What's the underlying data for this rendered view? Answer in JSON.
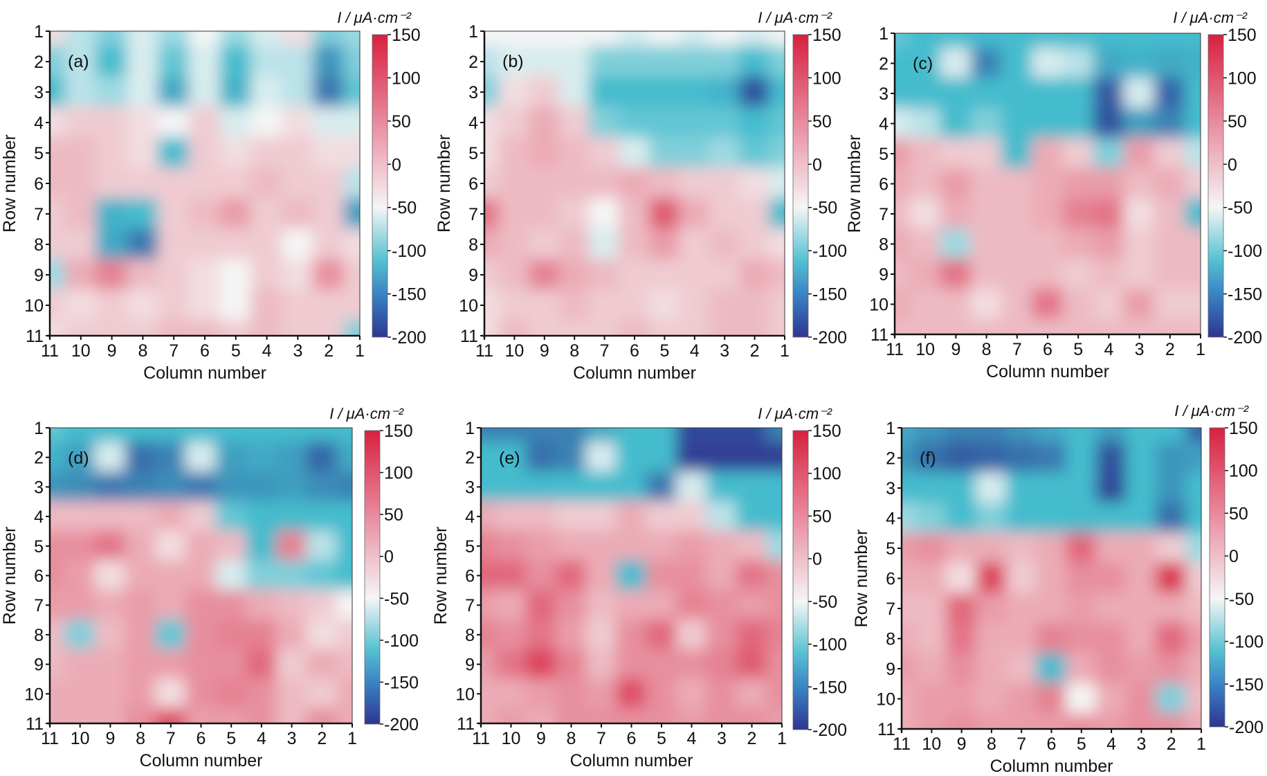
{
  "figure": {
    "y_axis_label": "Row number",
    "x_axis_label": "Column number",
    "colorbar_label": "I / μA·cm⁻²",
    "row_ticks": [
      "1",
      "2",
      "3",
      "4",
      "5",
      "6",
      "7",
      "8",
      "9",
      "10",
      "11"
    ],
    "column_ticks": [
      "11",
      "10",
      "9",
      "8",
      "7",
      "6",
      "5",
      "4",
      "3",
      "2",
      "1"
    ]
  },
  "chart_data": [
    {
      "type": "heatmap",
      "panel_label": "(a)",
      "xlabel": "Column number",
      "ylabel": "Row number",
      "colorbar_title": "I / μA·cm⁻²",
      "columns": [
        11,
        10,
        9,
        8,
        7,
        6,
        5,
        4,
        3,
        2,
        1
      ],
      "rows": [
        1,
        2,
        3,
        4,
        5,
        6,
        7,
        8,
        9,
        10,
        11
      ],
      "colorbar_ticks": [
        150,
        100,
        50,
        0,
        -50,
        -100,
        -150,
        -200
      ],
      "color_range": [
        -200,
        150
      ],
      "colors": {
        "high": "#d7213f",
        "mid": "#f5f5f5",
        "low": "#2e3592",
        "cyan": "#45bccd"
      },
      "values": [
        [
          10,
          -20,
          -40,
          -10,
          -30,
          0,
          -30,
          -10,
          10,
          -40,
          -30
        ],
        [
          -40,
          -20,
          -60,
          -10,
          -50,
          -10,
          -60,
          -20,
          -20,
          -100,
          -40
        ],
        [
          -60,
          -20,
          -30,
          -10,
          -80,
          -10,
          -70,
          -10,
          -20,
          -130,
          -50
        ],
        [
          10,
          20,
          20,
          10,
          0,
          20,
          -10,
          0,
          10,
          -10,
          -10
        ],
        [
          30,
          30,
          20,
          10,
          -60,
          20,
          10,
          20,
          20,
          10,
          10
        ],
        [
          30,
          30,
          20,
          20,
          20,
          20,
          20,
          30,
          20,
          20,
          -20
        ],
        [
          20,
          30,
          -70,
          -60,
          20,
          30,
          50,
          20,
          30,
          20,
          -90
        ],
        [
          20,
          20,
          -80,
          -130,
          20,
          20,
          20,
          20,
          0,
          20,
          10
        ],
        [
          -30,
          40,
          70,
          30,
          20,
          10,
          0,
          20,
          10,
          60,
          20
        ],
        [
          20,
          10,
          20,
          10,
          20,
          10,
          0,
          30,
          20,
          20,
          20
        ],
        [
          10,
          20,
          20,
          20,
          30,
          30,
          20,
          30,
          20,
          20,
          -40
        ]
      ]
    },
    {
      "type": "heatmap",
      "panel_label": "(b)",
      "xlabel": "Column number",
      "ylabel": "Row number",
      "colorbar_title": "I / μA·cm⁻²",
      "columns": [
        11,
        10,
        9,
        8,
        7,
        6,
        5,
        4,
        3,
        2,
        1
      ],
      "rows": [
        1,
        2,
        3,
        4,
        5,
        6,
        7,
        8,
        9,
        10,
        11
      ],
      "colorbar_ticks": [
        150,
        100,
        50,
        0,
        -50,
        -100,
        -150,
        -200
      ],
      "color_range": [
        -200,
        150
      ],
      "colors": {
        "high": "#d7213f",
        "mid": "#f5f5f5",
        "low": "#2e3592",
        "cyan": "#45bccd"
      },
      "values": [
        [
          0,
          0,
          0,
          0,
          0,
          -10,
          0,
          -10,
          0,
          -10,
          0
        ],
        [
          -20,
          -10,
          -10,
          -10,
          -40,
          -40,
          -40,
          -40,
          -40,
          -60,
          -40
        ],
        [
          -40,
          10,
          20,
          -10,
          -60,
          -60,
          -60,
          -60,
          -70,
          -170,
          -60
        ],
        [
          10,
          20,
          40,
          20,
          -40,
          -50,
          -50,
          -50,
          -50,
          -60,
          -50
        ],
        [
          10,
          30,
          40,
          30,
          20,
          -10,
          -40,
          -40,
          -30,
          -50,
          -40
        ],
        [
          20,
          30,
          30,
          30,
          30,
          40,
          30,
          20,
          20,
          10,
          -10
        ],
        [
          80,
          30,
          30,
          20,
          0,
          30,
          100,
          40,
          20,
          20,
          -60
        ],
        [
          40,
          30,
          20,
          30,
          -10,
          30,
          50,
          20,
          30,
          20,
          10
        ],
        [
          20,
          30,
          70,
          40,
          30,
          20,
          20,
          20,
          20,
          40,
          30
        ],
        [
          10,
          20,
          20,
          30,
          20,
          20,
          10,
          20,
          30,
          30,
          20
        ],
        [
          10,
          30,
          20,
          20,
          20,
          30,
          20,
          20,
          30,
          30,
          20
        ]
      ]
    },
    {
      "type": "heatmap",
      "panel_label": "(c)",
      "xlabel": "Column number",
      "ylabel": "Row number",
      "colorbar_title": "I / μA·cm⁻²",
      "columns": [
        11,
        10,
        9,
        8,
        7,
        6,
        5,
        4,
        3,
        2,
        1
      ],
      "rows": [
        1,
        2,
        3,
        4,
        5,
        6,
        7,
        8,
        9,
        10,
        11
      ],
      "colorbar_ticks": [
        150,
        100,
        50,
        0,
        -50,
        -100,
        -150,
        -200
      ],
      "color_range": [
        -200,
        150
      ],
      "colors": {
        "high": "#d7213f",
        "mid": "#f5f5f5",
        "low": "#2e3592",
        "cyan": "#45bccd"
      },
      "values": [
        [
          -50,
          -60,
          -60,
          -60,
          -60,
          -60,
          -60,
          -60,
          -60,
          -60,
          -60
        ],
        [
          -60,
          -60,
          -10,
          -120,
          -60,
          -10,
          -20,
          -80,
          -70,
          -80,
          -70
        ],
        [
          -60,
          -60,
          -60,
          -60,
          -60,
          -60,
          -60,
          -160,
          -10,
          -150,
          -60
        ],
        [
          -10,
          -20,
          -60,
          -40,
          -60,
          -60,
          -60,
          -170,
          -90,
          -120,
          -60
        ],
        [
          50,
          30,
          20,
          20,
          -60,
          40,
          20,
          -40,
          50,
          20,
          -20
        ],
        [
          40,
          30,
          50,
          30,
          30,
          40,
          50,
          50,
          30,
          40,
          20
        ],
        [
          30,
          10,
          40,
          30,
          30,
          40,
          70,
          80,
          10,
          30,
          -60
        ],
        [
          40,
          30,
          -30,
          30,
          30,
          30,
          40,
          50,
          20,
          30,
          30
        ],
        [
          30,
          40,
          80,
          30,
          30,
          30,
          20,
          30,
          20,
          30,
          30
        ],
        [
          40,
          30,
          30,
          10,
          30,
          80,
          30,
          20,
          50,
          20,
          20
        ],
        [
          30,
          30,
          30,
          30,
          30,
          30,
          30,
          30,
          30,
          30,
          30
        ]
      ]
    },
    {
      "type": "heatmap",
      "panel_label": "(d)",
      "xlabel": "Column number",
      "ylabel": "Row number",
      "colorbar_title": "I / μA·cm⁻²",
      "columns": [
        11,
        10,
        9,
        8,
        7,
        6,
        5,
        4,
        3,
        2,
        1
      ],
      "rows": [
        1,
        2,
        3,
        4,
        5,
        6,
        7,
        8,
        9,
        10,
        11
      ],
      "colorbar_ticks": [
        150,
        100,
        50,
        0,
        -50,
        -100,
        -150,
        -200
      ],
      "color_range": [
        -200,
        150
      ],
      "colors": {
        "high": "#d7213f",
        "mid": "#f5f5f5",
        "low": "#2e3592",
        "cyan": "#45bccd"
      },
      "values": [
        [
          -50,
          -60,
          -60,
          -60,
          -60,
          -60,
          -60,
          -60,
          -60,
          -60,
          -60
        ],
        [
          -70,
          -90,
          -10,
          -140,
          -120,
          -10,
          -90,
          -80,
          -90,
          -150,
          -80
        ],
        [
          -100,
          -110,
          -130,
          -120,
          -110,
          -130,
          -100,
          -100,
          -90,
          -110,
          -120
        ],
        [
          30,
          30,
          30,
          30,
          40,
          20,
          -50,
          -60,
          -60,
          -60,
          -60
        ],
        [
          60,
          60,
          80,
          40,
          10,
          40,
          30,
          -60,
          70,
          -20,
          -60
        ],
        [
          60,
          50,
          10,
          40,
          40,
          40,
          -10,
          -40,
          -40,
          -50,
          -60
        ],
        [
          50,
          50,
          40,
          50,
          40,
          60,
          60,
          40,
          30,
          20,
          0
        ],
        [
          30,
          -40,
          30,
          50,
          -50,
          60,
          70,
          70,
          40,
          10,
          20
        ],
        [
          30,
          40,
          40,
          50,
          50,
          60,
          60,
          90,
          20,
          40,
          30
        ],
        [
          40,
          40,
          40,
          50,
          10,
          60,
          70,
          60,
          30,
          20,
          40
        ],
        [
          40,
          40,
          40,
          60,
          110,
          50,
          50,
          60,
          30,
          60,
          40
        ]
      ]
    },
    {
      "type": "heatmap",
      "panel_label": "(e)",
      "xlabel": "Column number",
      "ylabel": "Row number",
      "colorbar_title": "I / μA·cm⁻²",
      "columns": [
        11,
        10,
        9,
        8,
        7,
        6,
        5,
        4,
        3,
        2,
        1
      ],
      "rows": [
        1,
        2,
        3,
        4,
        5,
        6,
        7,
        8,
        9,
        10,
        11
      ],
      "colorbar_ticks": [
        150,
        100,
        50,
        0,
        -50,
        -100,
        -150,
        -200
      ],
      "color_range": [
        -200,
        150
      ],
      "colors": {
        "high": "#d7213f",
        "mid": "#f5f5f5",
        "low": "#2e3592",
        "cyan": "#45bccd"
      },
      "values": [
        [
          -120,
          -120,
          -120,
          -120,
          -80,
          -60,
          -60,
          -180,
          -180,
          -180,
          -120
        ],
        [
          -60,
          -60,
          -140,
          -120,
          -10,
          -60,
          -60,
          -190,
          -190,
          -190,
          -190
        ],
        [
          -60,
          -60,
          -60,
          -60,
          -60,
          -60,
          -130,
          -10,
          -60,
          -60,
          -60
        ],
        [
          40,
          30,
          30,
          20,
          20,
          40,
          20,
          20,
          -20,
          -60,
          -60
        ],
        [
          70,
          60,
          50,
          40,
          40,
          40,
          40,
          50,
          40,
          30,
          -30
        ],
        [
          90,
          90,
          60,
          90,
          40,
          -60,
          60,
          60,
          40,
          80,
          60
        ],
        [
          50,
          40,
          90,
          60,
          30,
          40,
          40,
          70,
          60,
          50,
          60
        ],
        [
          70,
          60,
          80,
          50,
          20,
          60,
          90,
          20,
          60,
          90,
          70
        ],
        [
          50,
          80,
          120,
          70,
          30,
          60,
          60,
          60,
          70,
          100,
          60
        ],
        [
          40,
          40,
          50,
          60,
          50,
          110,
          60,
          40,
          60,
          40,
          60
        ],
        [
          40,
          50,
          40,
          60,
          60,
          60,
          60,
          50,
          60,
          60,
          50
        ]
      ]
    },
    {
      "type": "heatmap",
      "panel_label": "(f)",
      "xlabel": "Column number",
      "ylabel": "Row number",
      "colorbar_title": "I / μA·cm⁻²",
      "columns": [
        11,
        10,
        9,
        8,
        7,
        6,
        5,
        4,
        3,
        2,
        1
      ],
      "rows": [
        1,
        2,
        3,
        4,
        5,
        6,
        7,
        8,
        9,
        10,
        11
      ],
      "colorbar_ticks": [
        150,
        100,
        50,
        0,
        -50,
        -100,
        -150,
        -200
      ],
      "color_range": [
        -200,
        150
      ],
      "colors": {
        "high": "#d7213f",
        "mid": "#f5f5f5",
        "low": "#2e3592",
        "cyan": "#45bccd"
      },
      "values": [
        [
          -80,
          -100,
          -120,
          -120,
          -100,
          -80,
          -60,
          -90,
          -60,
          -60,
          -150
        ],
        [
          -100,
          -140,
          -160,
          -150,
          -140,
          -130,
          -60,
          -170,
          -60,
          -100,
          -90
        ],
        [
          -60,
          -60,
          -60,
          -10,
          -60,
          -60,
          -60,
          -180,
          -60,
          -100,
          -60
        ],
        [
          -30,
          -40,
          -60,
          -40,
          -60,
          -60,
          -60,
          -60,
          -60,
          -140,
          -60
        ],
        [
          50,
          60,
          40,
          40,
          30,
          40,
          90,
          40,
          40,
          20,
          -30
        ],
        [
          40,
          40,
          10,
          120,
          20,
          40,
          60,
          60,
          40,
          130,
          20
        ],
        [
          30,
          30,
          90,
          50,
          40,
          40,
          50,
          40,
          40,
          40,
          30
        ],
        [
          40,
          30,
          80,
          40,
          40,
          70,
          60,
          60,
          40,
          90,
          50
        ],
        [
          50,
          40,
          60,
          40,
          30,
          -60,
          40,
          60,
          50,
          60,
          40
        ],
        [
          40,
          50,
          50,
          40,
          50,
          70,
          0,
          40,
          60,
          -40,
          30
        ],
        [
          40,
          50,
          60,
          50,
          50,
          50,
          60,
          50,
          60,
          60,
          40
        ]
      ]
    }
  ]
}
